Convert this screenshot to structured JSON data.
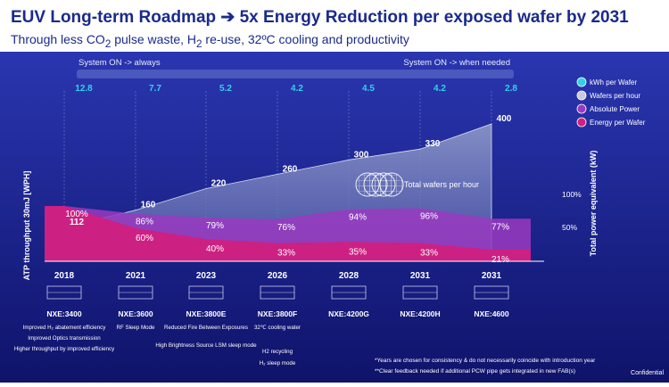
{
  "header": {
    "title": "EUV Long-term Roadmap ➔ 5x Energy Reduction per exposed wafer by 2031",
    "subtitle_pre": "Through less CO",
    "subtitle_sub1": "2",
    "subtitle_mid": " pulse waste, H",
    "subtitle_sub2": "2",
    "subtitle_post": " re-use, 32ºC cooling and productivity"
  },
  "banner": {
    "left": "System ON -> always",
    "right": "System ON -> when needed"
  },
  "colors": {
    "background_top": "#2a36b0",
    "background_bottom": "#0f136a",
    "kwh_line": "#33d1e8",
    "wafers": "#c8ccd8",
    "power": "#9a3ac0",
    "energy": "#d0207e"
  },
  "legend": {
    "items": [
      {
        "label": "kWh per Wafer",
        "color": "#33d1e8"
      },
      {
        "label": "Wafers per hour",
        "color": "#c8ccd8"
      },
      {
        "label": "Absolute Power",
        "color": "#9a3ac0"
      },
      {
        "label": "Energy per Wafer",
        "color": "#d0207e"
      }
    ]
  },
  "annotation": "Total wafers per hour",
  "chart_data": {
    "type": "area",
    "categories": [
      "2018",
      "2021",
      "2023",
      "2026",
      "2028",
      "2031",
      "2031"
    ],
    "ylabel_left": "ATP throughput 30mJ [WPH]",
    "ylabel_right": "Total power equivalent (kW)",
    "right_ticks": [
      "100%",
      "50%"
    ],
    "series": [
      {
        "name": "kWh per Wafer",
        "values": [
          12.8,
          7.7,
          5.2,
          4.2,
          4.5,
          4.2,
          2.8
        ]
      },
      {
        "name": "Wafers per hour",
        "values": [
          112,
          160,
          220,
          260,
          300,
          330,
          400
        ]
      },
      {
        "name": "Absolute Power",
        "values": [
          100,
          86,
          79,
          76,
          94,
          96,
          77
        ],
        "labels": [
          "100%",
          "86%",
          "79%",
          "76%",
          "94%",
          "96%",
          "77%"
        ]
      },
      {
        "name": "Energy per Wafer",
        "values": [
          100,
          60,
          40,
          33,
          35,
          33,
          21
        ],
        "labels": [
          "",
          "60%",
          "40%",
          "33%",
          "35%",
          "33%",
          "21%"
        ]
      }
    ]
  },
  "machines": [
    {
      "name": "NXE:3400",
      "notes": [
        "Improved H₂ abatement efficiency",
        "Improved Optics transmission",
        "Higher throughput by improved efficiency"
      ]
    },
    {
      "name": "NXE:3600",
      "notes": [
        "RF Sleep Mode"
      ]
    },
    {
      "name": "NXE:3800E",
      "notes": [
        "Reduced Fire Between Exposures",
        "High Brightness Source LSM sleep mode"
      ]
    },
    {
      "name": "NXE:3800F",
      "notes": [
        "32℃ cooling water",
        "H2 recycling",
        "H₂ sleep mode"
      ]
    },
    {
      "name": "NXE:4200G",
      "notes": []
    },
    {
      "name": "NXE:4200H",
      "notes": []
    },
    {
      "name": "NXE:4600",
      "notes": []
    }
  ],
  "footnotes": [
    "*Years are chosen for consistency & do not necessarily coincide with introduction year",
    "**Clear feedback needed if additional PCW pipe gets integrated in new FAB(s)"
  ],
  "confidential": "Confidential"
}
